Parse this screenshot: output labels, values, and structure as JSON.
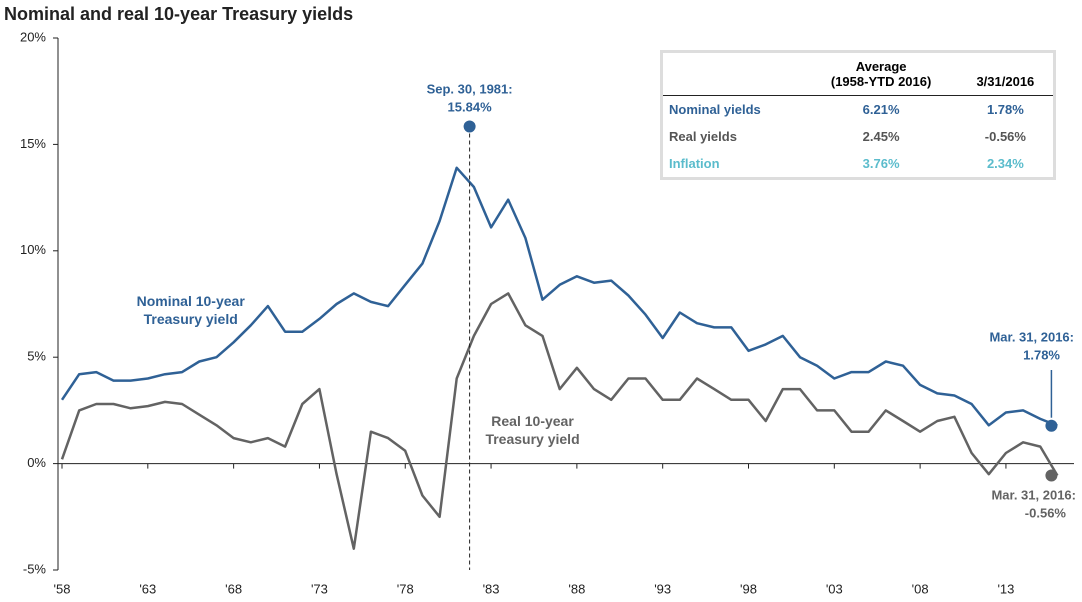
{
  "chart_data": {
    "type": "line",
    "title": "Nominal and real 10-year Treasury yields",
    "x": [
      1958,
      1959,
      1960,
      1961,
      1962,
      1963,
      1964,
      1965,
      1966,
      1967,
      1968,
      1969,
      1970,
      1971,
      1972,
      1973,
      1974,
      1975,
      1976,
      1977,
      1978,
      1979,
      1980,
      1981,
      1982,
      1983,
      1984,
      1985,
      1986,
      1987,
      1988,
      1989,
      1990,
      1991,
      1992,
      1993,
      1994,
      1995,
      1996,
      1997,
      1998,
      1999,
      2000,
      2001,
      2002,
      2003,
      2004,
      2005,
      2006,
      2007,
      2008,
      2009,
      2010,
      2011,
      2012,
      2013,
      2014,
      2015,
      2016
    ],
    "series": [
      {
        "name": "Nominal 10-year Treasury yield",
        "color": "#2f6196",
        "values": [
          3.0,
          4.2,
          4.3,
          3.9,
          3.9,
          4.0,
          4.2,
          4.3,
          4.8,
          5.0,
          5.7,
          6.5,
          7.4,
          6.2,
          6.2,
          6.8,
          7.5,
          8.0,
          7.6,
          7.4,
          8.4,
          9.4,
          11.4,
          13.9,
          13.0,
          11.1,
          12.4,
          10.6,
          7.7,
          8.4,
          8.8,
          8.5,
          8.6,
          7.9,
          7.0,
          5.9,
          7.1,
          6.6,
          6.4,
          6.4,
          5.3,
          5.6,
          6.0,
          5.0,
          4.6,
          4.0,
          4.3,
          4.3,
          4.8,
          4.6,
          3.7,
          3.3,
          3.2,
          2.8,
          1.8,
          2.4,
          2.5,
          2.1,
          1.78
        ]
      },
      {
        "name": "Real 10-year Treasury yield",
        "color": "#636363",
        "values": [
          0.2,
          2.5,
          2.8,
          2.8,
          2.6,
          2.7,
          2.9,
          2.8,
          2.3,
          1.8,
          1.2,
          1.0,
          1.2,
          0.8,
          2.8,
          3.5,
          -0.5,
          -4.0,
          1.5,
          1.2,
          0.6,
          -1.5,
          -2.5,
          4.0,
          6.0,
          7.5,
          8.0,
          6.5,
          6.0,
          3.5,
          4.5,
          3.5,
          3.0,
          4.0,
          4.0,
          3.0,
          3.0,
          4.0,
          3.5,
          3.0,
          3.0,
          2.0,
          3.5,
          3.5,
          2.5,
          2.5,
          1.5,
          1.5,
          2.5,
          2.0,
          1.5,
          2.0,
          2.2,
          0.5,
          -0.5,
          0.5,
          1.0,
          0.8,
          -0.56
        ]
      }
    ],
    "xlim": [
      1958,
      2016.5
    ],
    "xticks": [
      {
        "value": 1958,
        "label": "'58"
      },
      {
        "value": 1963,
        "label": "'63"
      },
      {
        "value": 1968,
        "label": "'68"
      },
      {
        "value": 1973,
        "label": "'73"
      },
      {
        "value": 1978,
        "label": "'78"
      },
      {
        "value": 1983,
        "label": "'83"
      },
      {
        "value": 1988,
        "label": "'88"
      },
      {
        "value": 1993,
        "label": "'93"
      },
      {
        "value": 1998,
        "label": "'98"
      },
      {
        "value": 2003,
        "label": "'03"
      },
      {
        "value": 2008,
        "label": "'08"
      },
      {
        "value": 2013,
        "label": "'13"
      }
    ],
    "ylim": [
      -5,
      20
    ],
    "yticks": [
      {
        "value": -5,
        "label": "-5%"
      },
      {
        "value": 0,
        "label": "0%"
      },
      {
        "value": 5,
        "label": "5%"
      },
      {
        "value": 10,
        "label": "10%"
      },
      {
        "value": 15,
        "label": "15%"
      },
      {
        "value": 20,
        "label": "20%"
      }
    ],
    "annotations": [
      {
        "label": "Sep. 30, 1981:",
        "value_label": "15.84%",
        "x": 1981.75,
        "value": 15.84,
        "color": "#2f6196"
      },
      {
        "label": "Mar. 31, 2016:",
        "value_label": "1.78%",
        "x": 2016,
        "value": 1.78,
        "color": "#2f6196"
      },
      {
        "label": "Mar. 31, 2016:",
        "value_label": "-0.56%",
        "x": 2016,
        "value": -0.56,
        "color": "#636363"
      }
    ],
    "table": {
      "header": [
        "Average",
        "(1958-YTD 2016)",
        "3/31/2016"
      ],
      "rows": [
        {
          "label": "Nominal yields",
          "average": "6.21%",
          "current": "1.78%",
          "color": "#2f6196"
        },
        {
          "label": "Real yields",
          "average": "2.45%",
          "current": "-0.56%",
          "color": "#555555"
        },
        {
          "label": "Inflation",
          "average": "3.76%",
          "current": "2.34%",
          "color": "#5bbccc"
        }
      ]
    }
  }
}
